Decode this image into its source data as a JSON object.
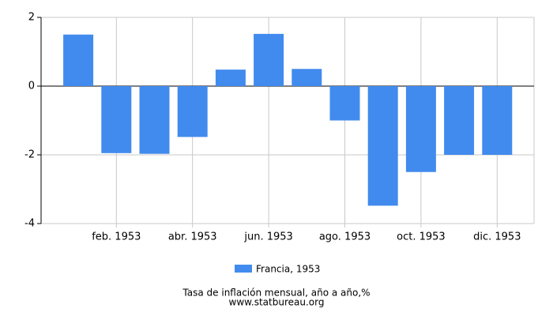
{
  "chart_data": {
    "type": "bar",
    "categories": [
      null,
      "feb. 1953",
      null,
      "abr. 1953",
      null,
      "jun. 1953",
      null,
      "ago. 1953",
      null,
      "oct. 1953",
      null,
      "dic. 1953"
    ],
    "series": [
      {
        "name": "Francia, 1953",
        "color": "#428bee",
        "values": [
          1.5,
          -1.95,
          -1.97,
          -1.48,
          0.48,
          1.52,
          0.5,
          -1.0,
          -3.48,
          -2.5,
          -2.0,
          -2.0
        ]
      }
    ],
    "ylim": [
      -4,
      2
    ],
    "yticks": [
      -4,
      -2,
      0,
      2
    ],
    "grid": true,
    "footer": [
      "Tasa de inflación mensual, año a año,%",
      "www.statbureau.org"
    ]
  }
}
